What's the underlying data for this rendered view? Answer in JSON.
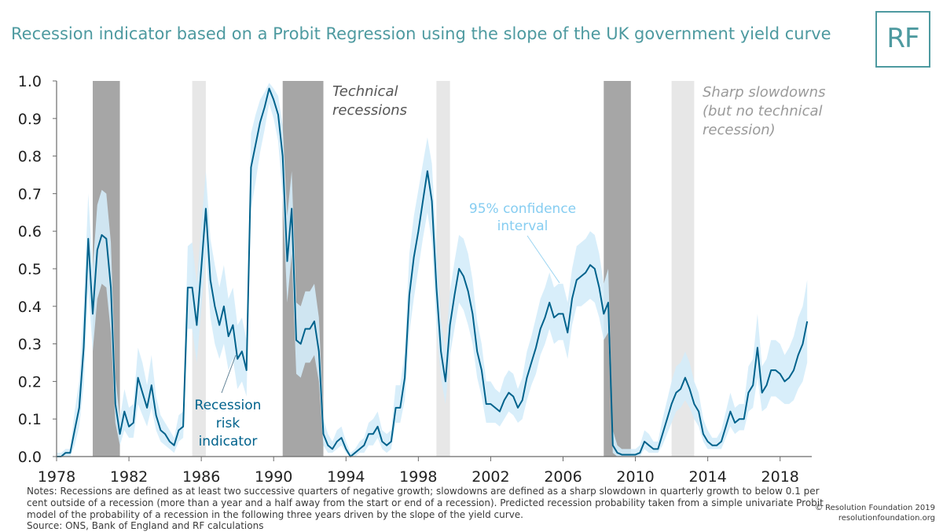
{
  "title": "Recession indicator based on a Probit Regression using the slope of the UK government yield curve",
  "logo": "RF",
  "colors": {
    "line": "#00628c",
    "band": "#d4ecfa",
    "recession": "#a6a6a6",
    "slowdown": "#e7e7e7",
    "title": "#4e9aa0",
    "ci_label": "#86cdf1",
    "slow_label": "#9a9a9a",
    "tech_label": "#555555"
  },
  "notes": {
    "line1": "Notes: Recessions are defined as at least two successive quarters of negative growth; slowdowns are defined as a sharp slowdown in quarterly growth to below 0.1 per",
    "line2": "cent outside of a recession (more than a year and a half away from the start or end of a recession). Predicted recession probability taken from a simple univariate Probit",
    "line3": "model of the probability of a recession in the following three years driven by the slope of the yield curve.",
    "source": "Source: ONS, Bank of England and RF calculations"
  },
  "copyright": {
    "line1": "© Resolution Foundation 2019",
    "line2": "resolutionfoundation.org"
  },
  "chart_data": {
    "type": "line",
    "title": "Recession indicator based on a Probit Regression using the slope of the UK government yield curve",
    "xlabel": "",
    "ylabel": "",
    "xlim": [
      1978.0,
      2019.75
    ],
    "ylim": [
      0,
      1.0
    ],
    "grid": false,
    "x_ticks": [
      1978,
      1982,
      1986,
      1990,
      1994,
      1998,
      2002,
      2006,
      2010,
      2014,
      2018
    ],
    "y_ticks": [
      0.0,
      0.1,
      0.2,
      0.3,
      0.4,
      0.5,
      0.6,
      0.7,
      0.8,
      0.9,
      1.0
    ],
    "y_tick_labels": [
      "0.0",
      "0.1",
      "0.2",
      "0.3",
      "0.4",
      "0.5",
      "0.6",
      "0.7",
      "0.8",
      "0.9",
      "1.0"
    ],
    "recessions": [
      [
        1980.0,
        1981.5
      ],
      [
        1990.5,
        1992.75
      ],
      [
        2008.25,
        2009.75
      ]
    ],
    "slowdowns": [
      [
        1985.5,
        1986.25
      ],
      [
        1999.0,
        1999.75
      ],
      [
        2012.0,
        2013.25
      ]
    ],
    "annotations": {
      "technical": [
        "Technical",
        "recessions"
      ],
      "slowdowns": [
        "Sharp slowdowns",
        "(but no technical",
        "recession)"
      ],
      "ci": [
        "95% confidence",
        "interval"
      ],
      "indicator": [
        "Recession",
        "risk",
        "indicator"
      ]
    },
    "series": [
      {
        "name": "Recession risk indicator",
        "x_start": 1978.0,
        "x_step": 0.25,
        "values": [
          0.0,
          0.0,
          0.01,
          0.01,
          0.07,
          0.13,
          0.29,
          0.58,
          0.38,
          0.55,
          0.59,
          0.58,
          0.45,
          0.14,
          0.06,
          0.12,
          0.08,
          0.09,
          0.21,
          0.17,
          0.13,
          0.19,
          0.11,
          0.07,
          0.06,
          0.04,
          0.03,
          0.07,
          0.08,
          0.45,
          0.45,
          0.35,
          0.5,
          0.66,
          0.47,
          0.4,
          0.35,
          0.4,
          0.32,
          0.35,
          0.26,
          0.28,
          0.23,
          0.77,
          0.83,
          0.89,
          0.93,
          0.98,
          0.95,
          0.91,
          0.8,
          0.52,
          0.66,
          0.31,
          0.3,
          0.34,
          0.34,
          0.36,
          0.28,
          0.06,
          0.03,
          0.02,
          0.04,
          0.05,
          0.02,
          0.0,
          0.01,
          0.02,
          0.03,
          0.06,
          0.06,
          0.08,
          0.04,
          0.03,
          0.04,
          0.13,
          0.13,
          0.21,
          0.43,
          0.53,
          0.6,
          0.68,
          0.76,
          0.68,
          0.45,
          0.28,
          0.2,
          0.35,
          0.43,
          0.5,
          0.48,
          0.44,
          0.38,
          0.28,
          0.23,
          0.14,
          0.14,
          0.13,
          0.12,
          0.15,
          0.17,
          0.16,
          0.13,
          0.15,
          0.21,
          0.25,
          0.29,
          0.34,
          0.37,
          0.41,
          0.37,
          0.38,
          0.38,
          0.33,
          0.42,
          0.47,
          0.48,
          0.49,
          0.51,
          0.5,
          0.45,
          0.38,
          0.41,
          0.03,
          0.01,
          0.005,
          0.005,
          0.005,
          0.005,
          0.01,
          0.04,
          0.03,
          0.02,
          0.02,
          0.06,
          0.1,
          0.14,
          0.17,
          0.18,
          0.21,
          0.18,
          0.14,
          0.12,
          0.06,
          0.04,
          0.03,
          0.03,
          0.04,
          0.08,
          0.12,
          0.09,
          0.1,
          0.1,
          0.17,
          0.19,
          0.29,
          0.17,
          0.19,
          0.23,
          0.23,
          0.22,
          0.2,
          0.21,
          0.23,
          0.27,
          0.3,
          0.36
        ]
      },
      {
        "name": "95% confidence interval (lower)",
        "values": [
          0.0,
          0.0,
          0.0,
          0.0,
          0.03,
          0.08,
          0.19,
          0.45,
          0.28,
          0.42,
          0.46,
          0.45,
          0.33,
          0.09,
          0.03,
          0.07,
          0.05,
          0.05,
          0.14,
          0.11,
          0.08,
          0.13,
          0.07,
          0.04,
          0.03,
          0.02,
          0.01,
          0.04,
          0.05,
          0.34,
          0.34,
          0.25,
          0.39,
          0.55,
          0.37,
          0.3,
          0.26,
          0.3,
          0.23,
          0.26,
          0.18,
          0.2,
          0.16,
          0.66,
          0.73,
          0.81,
          0.87,
          0.94,
          0.9,
          0.84,
          0.69,
          0.41,
          0.54,
          0.22,
          0.21,
          0.25,
          0.25,
          0.27,
          0.2,
          0.03,
          0.01,
          0.01,
          0.02,
          0.03,
          0.01,
          0.0,
          0.0,
          0.01,
          0.01,
          0.03,
          0.03,
          0.05,
          0.02,
          0.01,
          0.02,
          0.09,
          0.09,
          0.15,
          0.33,
          0.42,
          0.5,
          0.58,
          0.65,
          0.57,
          0.35,
          0.21,
          0.14,
          0.27,
          0.34,
          0.41,
          0.39,
          0.35,
          0.3,
          0.21,
          0.16,
          0.09,
          0.09,
          0.09,
          0.08,
          0.1,
          0.12,
          0.11,
          0.09,
          0.1,
          0.15,
          0.19,
          0.22,
          0.27,
          0.3,
          0.34,
          0.3,
          0.31,
          0.31,
          0.26,
          0.35,
          0.4,
          0.4,
          0.41,
          0.42,
          0.41,
          0.37,
          0.31,
          0.33,
          0.01,
          0.0,
          0.0,
          0.0,
          0.0,
          0.0,
          0.0,
          0.02,
          0.01,
          0.01,
          0.01,
          0.03,
          0.06,
          0.09,
          0.12,
          0.13,
          0.15,
          0.13,
          0.1,
          0.08,
          0.04,
          0.02,
          0.02,
          0.02,
          0.02,
          0.05,
          0.08,
          0.06,
          0.07,
          0.07,
          0.12,
          0.13,
          0.21,
          0.12,
          0.13,
          0.16,
          0.16,
          0.15,
          0.14,
          0.14,
          0.15,
          0.18,
          0.2,
          0.25
        ]
      },
      {
        "name": "95% confidence interval (upper)",
        "values": [
          0.01,
          0.01,
          0.02,
          0.02,
          0.12,
          0.2,
          0.4,
          0.7,
          0.5,
          0.67,
          0.71,
          0.7,
          0.57,
          0.21,
          0.1,
          0.18,
          0.13,
          0.14,
          0.29,
          0.25,
          0.19,
          0.27,
          0.16,
          0.11,
          0.09,
          0.07,
          0.05,
          0.11,
          0.12,
          0.56,
          0.57,
          0.46,
          0.61,
          0.76,
          0.58,
          0.51,
          0.45,
          0.51,
          0.42,
          0.45,
          0.35,
          0.37,
          0.31,
          0.86,
          0.91,
          0.95,
          0.97,
          0.995,
          0.98,
          0.96,
          0.88,
          0.64,
          0.76,
          0.41,
          0.4,
          0.44,
          0.44,
          0.46,
          0.37,
          0.1,
          0.06,
          0.04,
          0.07,
          0.08,
          0.04,
          0.01,
          0.02,
          0.04,
          0.05,
          0.09,
          0.1,
          0.12,
          0.07,
          0.06,
          0.07,
          0.19,
          0.19,
          0.28,
          0.54,
          0.64,
          0.71,
          0.78,
          0.85,
          0.78,
          0.56,
          0.36,
          0.28,
          0.44,
          0.52,
          0.59,
          0.58,
          0.54,
          0.47,
          0.36,
          0.3,
          0.2,
          0.2,
          0.18,
          0.17,
          0.21,
          0.23,
          0.22,
          0.18,
          0.21,
          0.28,
          0.32,
          0.37,
          0.42,
          0.45,
          0.49,
          0.45,
          0.46,
          0.46,
          0.41,
          0.5,
          0.56,
          0.57,
          0.58,
          0.6,
          0.59,
          0.54,
          0.46,
          0.5,
          0.07,
          0.03,
          0.02,
          0.02,
          0.02,
          0.02,
          0.03,
          0.07,
          0.06,
          0.04,
          0.04,
          0.1,
          0.15,
          0.2,
          0.24,
          0.25,
          0.28,
          0.25,
          0.2,
          0.17,
          0.1,
          0.07,
          0.05,
          0.05,
          0.07,
          0.12,
          0.17,
          0.13,
          0.14,
          0.14,
          0.24,
          0.26,
          0.38,
          0.24,
          0.26,
          0.31,
          0.31,
          0.3,
          0.27,
          0.29,
          0.32,
          0.37,
          0.4,
          0.47
        ]
      }
    ]
  }
}
